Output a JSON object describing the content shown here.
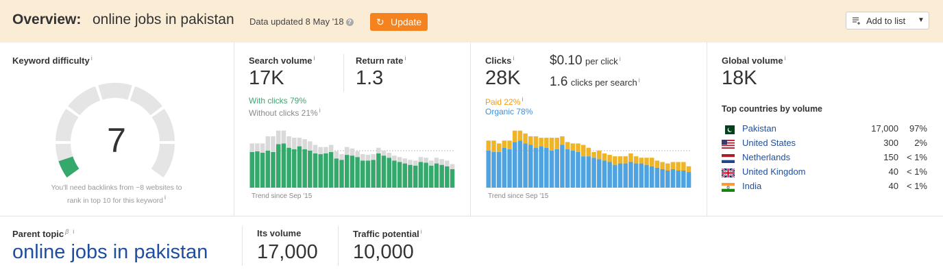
{
  "header": {
    "title": "Overview:",
    "keyword": "online jobs in pakistan",
    "updated": "Data updated 8 May '18",
    "update_label": "Update",
    "add_to_list_label": "Add to list"
  },
  "difficulty": {
    "label": "Keyword difficulty",
    "info": "i",
    "score": "7",
    "score_fraction": 0.07,
    "note_line1": "You'll need backlinks from ~8 websites to",
    "note_line2": "rank in top 10 for this keyword",
    "note_info": "i"
  },
  "search_volume": {
    "label": "Search volume",
    "info": "i",
    "value": "17K",
    "with_clicks": "With clicks 79%",
    "without_clicks": "Without clicks 21%",
    "without_info": "i",
    "trend_label": "Trend since Sep '15"
  },
  "return_rate": {
    "label": "Return rate",
    "info": "i",
    "value": "1.3"
  },
  "clicks": {
    "label": "Clicks",
    "info": "i",
    "value": "28K",
    "cpc_value": "$0.10",
    "cpc_suffix": "per click",
    "cpc_info": "i",
    "cps_value": "1.6",
    "cps_suffix": "clicks per search",
    "cps_info": "i",
    "paid": "Paid 22%",
    "paid_info": "i",
    "organic": "Organic 78%",
    "trend_label": "Trend since Sep '15"
  },
  "global_volume": {
    "label": "Global volume",
    "info": "i",
    "value": "18K",
    "countries_title": "Top countries by volume",
    "countries": [
      {
        "name": "Pakistan",
        "volume": "17,000",
        "pct": "97%",
        "flag": "pakistan-flag"
      },
      {
        "name": "United States",
        "volume": "300",
        "pct": "2%",
        "flag": "us-flag"
      },
      {
        "name": "Netherlands",
        "volume": "150",
        "pct": "< 1%",
        "flag": "netherlands-flag"
      },
      {
        "name": "United Kingdom",
        "volume": "40",
        "pct": "< 1%",
        "flag": "uk-flag"
      },
      {
        "name": "India",
        "volume": "40",
        "pct": "< 1%",
        "flag": "india-flag"
      }
    ]
  },
  "parent_topic": {
    "label": "Parent topic",
    "beta": "β",
    "info": "i",
    "keyword": "online jobs in pakistan"
  },
  "its_volume": {
    "label": "Its volume",
    "value": "17,000"
  },
  "traffic_potential": {
    "label": "Traffic potential",
    "info": "i",
    "value": "10,000"
  },
  "colors": {
    "green": "#35a86b",
    "grey_bar": "#d9d9d9",
    "paid": "#f0b429",
    "organic": "#4ea3e0",
    "accent": "#f4831f",
    "link": "#1f4e9e"
  },
  "chart_data": [
    {
      "type": "bar",
      "title": "",
      "stacked": true,
      "series": [
        {
          "name": "With clicks",
          "values": [
            50,
            51,
            49,
            52,
            50,
            61,
            62,
            56,
            54,
            58,
            54,
            52,
            48,
            47,
            48,
            50,
            41,
            39,
            46,
            45,
            43,
            38,
            38,
            39,
            48,
            45,
            42,
            38,
            36,
            34,
            32,
            31,
            36,
            35,
            31,
            34,
            32,
            30,
            26
          ]
        },
        {
          "name": "Without clicks",
          "values": [
            12,
            11,
            13,
            20,
            22,
            19,
            18,
            16,
            16,
            12,
            14,
            13,
            12,
            10,
            9,
            10,
            10,
            8,
            11,
            10,
            8,
            9,
            8,
            8,
            8,
            7,
            7,
            7,
            7,
            7,
            7,
            7,
            7,
            7,
            7,
            8,
            8,
            8,
            7
          ]
        }
      ]
    },
    {
      "type": "bar",
      "title": "",
      "stacked": true,
      "series": [
        {
          "name": "Organic",
          "values": [
            52,
            50,
            50,
            56,
            54,
            64,
            66,
            62,
            60,
            56,
            58,
            56,
            52,
            54,
            60,
            54,
            52,
            50,
            44,
            44,
            42,
            40,
            38,
            36,
            32,
            34,
            34,
            36,
            34,
            34,
            32,
            30,
            28,
            26,
            24,
            26,
            24,
            24,
            22
          ]
        },
        {
          "name": "Paid",
          "values": [
            14,
            16,
            12,
            10,
            12,
            16,
            14,
            14,
            12,
            16,
            12,
            14,
            18,
            16,
            12,
            10,
            10,
            12,
            16,
            12,
            8,
            12,
            10,
            10,
            12,
            10,
            10,
            12,
            10,
            8,
            10,
            12,
            10,
            10,
            10,
            10,
            12,
            12,
            8
          ]
        }
      ]
    }
  ]
}
